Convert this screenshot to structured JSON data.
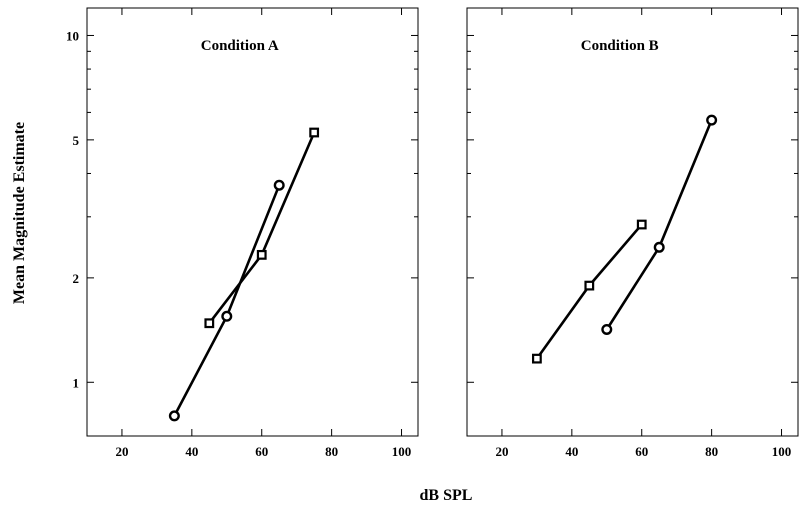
{
  "figure": {
    "xlabel": "dB SPL",
    "ylabel": "Mean Magnitude Estimate"
  },
  "chart_data": [
    {
      "type": "line",
      "title": "Condition A",
      "xlabel": "dB SPL",
      "ylabel": "Mean Magnitude Estimate",
      "xlim": [
        10,
        105
      ],
      "ylim": [
        0.7,
        12
      ],
      "yscale": "log",
      "xticks": [
        20,
        40,
        60,
        80,
        100
      ],
      "yticks": [
        1,
        2,
        5,
        10
      ],
      "xtick_labels": [
        "20",
        "40",
        "60",
        "80",
        "100"
      ],
      "ytick_labels": [
        "1",
        "2",
        "5",
        "10"
      ],
      "grid": false,
      "series": [
        {
          "marker": "circle",
          "x": [
            35,
            50,
            65
          ],
          "y": [
            0.8,
            1.55,
            3.7
          ]
        },
        {
          "marker": "square",
          "x": [
            45,
            60,
            75
          ],
          "y": [
            1.48,
            2.33,
            5.25
          ]
        }
      ]
    },
    {
      "type": "line",
      "title": "Condition B",
      "xlabel": "dB SPL",
      "ylabel": "Mean Magnitude Estimate",
      "xlim": [
        10,
        105
      ],
      "ylim": [
        0.7,
        12
      ],
      "yscale": "log",
      "xticks": [
        20,
        40,
        60,
        80,
        100
      ],
      "yticks": [
        1,
        2,
        5,
        10
      ],
      "xtick_labels": [
        "20",
        "40",
        "60",
        "80",
        "100"
      ],
      "ytick_labels": [
        "1",
        "2",
        "5",
        "10"
      ],
      "grid": false,
      "series": [
        {
          "marker": "circle",
          "x": [
            50,
            65,
            80
          ],
          "y": [
            1.42,
            2.45,
            5.7
          ]
        },
        {
          "marker": "square",
          "x": [
            30,
            45,
            60
          ],
          "y": [
            1.17,
            1.9,
            2.85
          ]
        }
      ]
    }
  ]
}
